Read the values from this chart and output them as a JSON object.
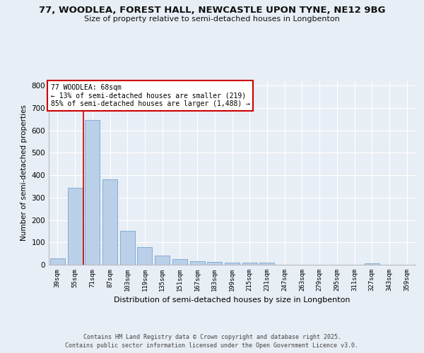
{
  "title1": "77, WOODLEA, FOREST HALL, NEWCASTLE UPON TYNE, NE12 9BG",
  "title2": "Size of property relative to semi-detached houses in Longbenton",
  "xlabel": "Distribution of semi-detached houses by size in Longbenton",
  "ylabel": "Number of semi-detached properties",
  "categories": [
    "39sqm",
    "55sqm",
    "71sqm",
    "87sqm",
    "103sqm",
    "119sqm",
    "135sqm",
    "151sqm",
    "167sqm",
    "183sqm",
    "199sqm",
    "215sqm",
    "231sqm",
    "247sqm",
    "263sqm",
    "279sqm",
    "295sqm",
    "311sqm",
    "327sqm",
    "343sqm",
    "359sqm"
  ],
  "values": [
    28,
    345,
    645,
    383,
    152,
    80,
    42,
    24,
    16,
    13,
    11,
    11,
    9,
    0,
    0,
    0,
    0,
    0,
    5,
    0,
    0
  ],
  "bar_color": "#bad0e8",
  "bar_edge_color": "#6699cc",
  "annotation_title": "77 WOODLEA: 68sqm",
  "annotation_line1": "← 13% of semi-detached houses are smaller (219)",
  "annotation_line2": "85% of semi-detached houses are larger (1,488) →",
  "annotation_box_color": "#cc0000",
  "red_line_x": 1.5,
  "ylim": [
    0,
    820
  ],
  "yticks": [
    0,
    100,
    200,
    300,
    400,
    500,
    600,
    700,
    800
  ],
  "footer1": "Contains HM Land Registry data © Crown copyright and database right 2025.",
  "footer2": "Contains public sector information licensed under the Open Government Licence v3.0.",
  "bg_color": "#e8eef5",
  "plot_bg_color": "#e8eef5"
}
